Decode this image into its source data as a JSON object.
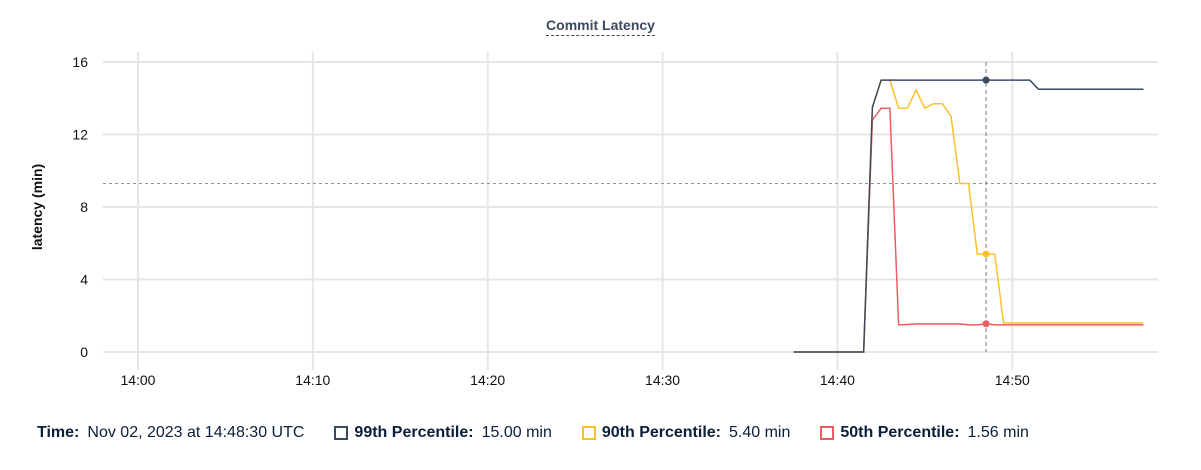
{
  "chart_data": {
    "type": "line",
    "title": "Commit Latency",
    "xlabel": "",
    "ylabel": "latency (min)",
    "ylim": [
      0,
      16
    ],
    "xlim": [
      "13:58:00",
      "14:58:20"
    ],
    "yticks": [
      "0",
      "4",
      "8",
      "12",
      "16"
    ],
    "xticks": [
      "14:00",
      "14:10",
      "14:20",
      "14:30",
      "14:40",
      "14:50"
    ],
    "grid": true,
    "threshold": 9.3,
    "cursor": "14:48:30",
    "x": [
      "14:37:30",
      "14:41:30",
      "14:42:00",
      "14:42:30",
      "14:43:00",
      "14:43:30",
      "14:44:00",
      "14:44:30",
      "14:45:00",
      "14:45:30",
      "14:46:00",
      "14:46:30",
      "14:47:00",
      "14:47:30",
      "14:48:00",
      "14:48:30",
      "14:49:00",
      "14:49:30",
      "14:51:00",
      "14:51:30",
      "14:57:30"
    ],
    "series": [
      {
        "name": "99th Percentile",
        "color": "#3b4a5e",
        "values": [
          0,
          0,
          13.5,
          15,
          15,
          15,
          15,
          15,
          15,
          15,
          15,
          15,
          15,
          15,
          15,
          15,
          15,
          15,
          15,
          14.5,
          14.5
        ]
      },
      {
        "name": "90th Percentile",
        "color": "#fbc02d",
        "values": [
          0,
          0,
          13.5,
          15,
          15,
          13.45,
          13.45,
          14.45,
          13.45,
          13.7,
          13.7,
          13.0,
          9.3,
          9.3,
          5.4,
          5.4,
          5.4,
          1.6,
          1.6,
          1.6,
          1.6
        ]
      },
      {
        "name": "50th Percentile",
        "color": "#ef5b65",
        "values": [
          0,
          0,
          12.8,
          13.45,
          13.45,
          1.5,
          1.52,
          1.55,
          1.55,
          1.55,
          1.55,
          1.55,
          1.55,
          1.5,
          1.5,
          1.56,
          1.5,
          1.5,
          1.5,
          1.5,
          1.5
        ]
      }
    ]
  },
  "legend": {
    "time_label": "Time:",
    "time_value": "Nov 02, 2023 at 14:48:30 UTC",
    "items": [
      {
        "label": "99th Percentile:",
        "value": "15.00 min"
      },
      {
        "label": "90th Percentile:",
        "value": "5.40 min"
      },
      {
        "label": "50th Percentile:",
        "value": "1.56 min"
      }
    ]
  }
}
